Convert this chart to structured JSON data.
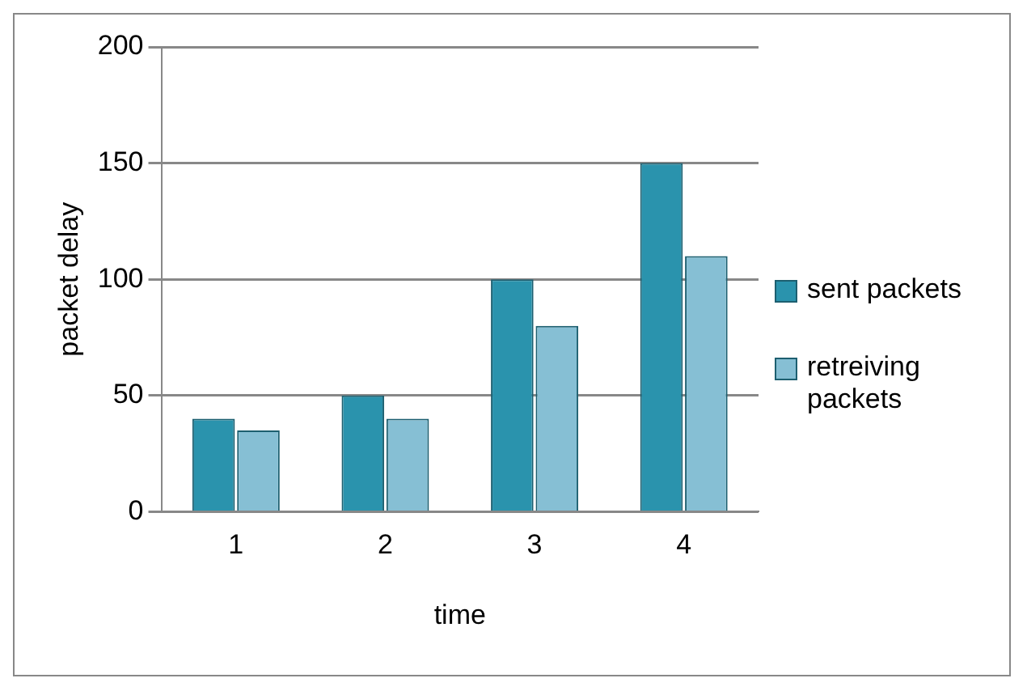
{
  "chart_data": {
    "type": "bar",
    "xlabel": "time",
    "ylabel": "packet delay",
    "categories": [
      "1",
      "2",
      "3",
      "4"
    ],
    "series": [
      {
        "name": "sent packets",
        "color": "#2a93ad",
        "values": [
          40,
          50,
          100,
          150
        ]
      },
      {
        "name": "retreiving packets",
        "color": "#86bfd4",
        "values": [
          35,
          40,
          80,
          110
        ]
      }
    ],
    "ylim": [
      0,
      200
    ],
    "yticks": [
      0,
      50,
      100,
      150,
      200
    ],
    "grid": "y",
    "legend": "right"
  }
}
